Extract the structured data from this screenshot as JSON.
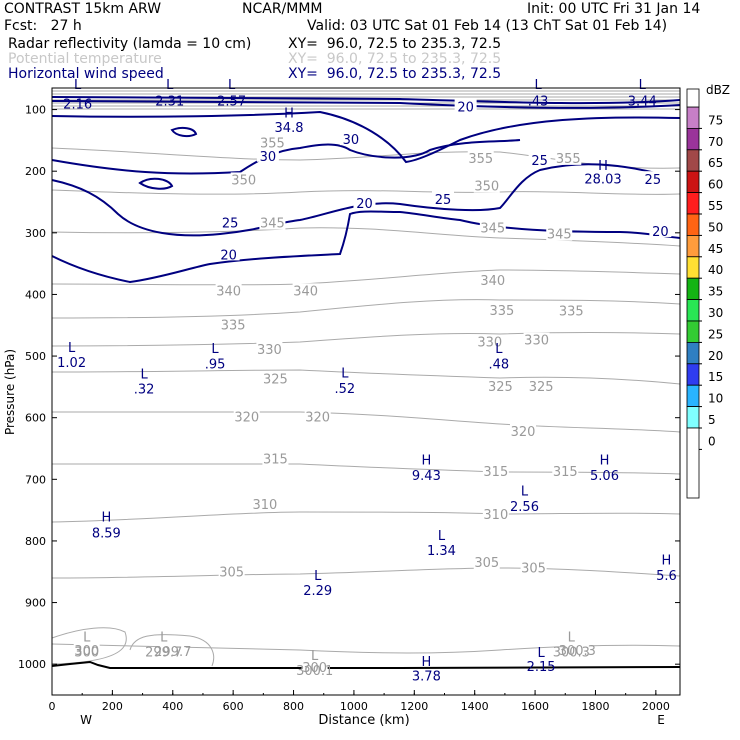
{
  "header": {
    "model": "CONTRAST 15km ARW",
    "org": "NCAR/MMM",
    "init": "Init: 00 UTC Fri 31 Jan 14",
    "fcst": "Fcst:   27 h",
    "valid": "Valid: 03 UTC Sat 01 Feb 14 (13 ChT Sat 01 Feb 14)",
    "fields": [
      {
        "name": "Radar reflectivity (lamda = 10 cm)",
        "xy": "XY=  96.0, 72.5 to 235.3, 72.5",
        "color": "#000000"
      },
      {
        "name": "Potential temperature",
        "xy": "XY=  96.0, 72.5 to 235.3, 72.5",
        "color": "#c8c8c8"
      },
      {
        "name": "Horizontal wind speed",
        "xy": "XY=  96.0, 72.5 to 235.3, 72.5",
        "color": "#000080"
      }
    ]
  },
  "colorbar": {
    "unit": "dBZ",
    "levels": [
      "0",
      "5",
      "10",
      "15",
      "20",
      "25",
      "30",
      "35",
      "40",
      "45",
      "50",
      "55",
      "60",
      "65",
      "70",
      "75"
    ],
    "colors": [
      "#ffffff",
      "#80ffff",
      "#29b4ff",
      "#2f3cf0",
      "#2f7fc2",
      "#33cc33",
      "#29e654",
      "#14b414",
      "#ffe033",
      "#ff9c3c",
      "#ff6414",
      "#ff1e1e",
      "#cc1414",
      "#a14848",
      "#9a349a",
      "#c77fc7"
    ]
  },
  "chart_data": {
    "type": "cross-section contour",
    "xlabel": "Distance (km)",
    "ylabel": "Pressure (hPa)",
    "xlim": [
      0,
      2080
    ],
    "ylim": [
      1050,
      65
    ],
    "x_ticks": [
      "0",
      "200",
      "400",
      "600",
      "800",
      "1000",
      "1200",
      "1400",
      "1600",
      "1800",
      "2000"
    ],
    "y_ticks": [
      "100",
      "200",
      "300",
      "400",
      "500",
      "600",
      "700",
      "800",
      "900",
      "1000"
    ],
    "x_end_labels": {
      "left": "W",
      "right": "E"
    },
    "theta_labels": [
      {
        "t": "355",
        "x": 730,
        "p": 155
      },
      {
        "t": "355",
        "x": 1420,
        "p": 180
      },
      {
        "t": "355",
        "x": 1710,
        "p": 180
      },
      {
        "t": "350",
        "x": 635,
        "p": 215
      },
      {
        "t": "350",
        "x": 1440,
        "p": 225
      },
      {
        "t": "345",
        "x": 730,
        "p": 285
      },
      {
        "t": "345",
        "x": 1460,
        "p": 293
      },
      {
        "t": "345",
        "x": 1680,
        "p": 303
      },
      {
        "t": "340",
        "x": 585,
        "p": 395
      },
      {
        "t": "340",
        "x": 840,
        "p": 395
      },
      {
        "t": "340",
        "x": 1460,
        "p": 378
      },
      {
        "t": "335",
        "x": 600,
        "p": 450
      },
      {
        "t": "335",
        "x": 1490,
        "p": 427
      },
      {
        "t": "335",
        "x": 1720,
        "p": 428
      },
      {
        "t": "330",
        "x": 720,
        "p": 490
      },
      {
        "t": "330",
        "x": 1450,
        "p": 478
      },
      {
        "t": "330",
        "x": 1605,
        "p": 475
      },
      {
        "t": "325",
        "x": 740,
        "p": 538
      },
      {
        "t": "325",
        "x": 1485,
        "p": 550
      },
      {
        "t": "325",
        "x": 1620,
        "p": 550
      },
      {
        "t": "320",
        "x": 645,
        "p": 600
      },
      {
        "t": "320",
        "x": 880,
        "p": 600
      },
      {
        "t": "320",
        "x": 1560,
        "p": 623
      },
      {
        "t": "315",
        "x": 740,
        "p": 668
      },
      {
        "t": "315",
        "x": 1470,
        "p": 688
      },
      {
        "t": "315",
        "x": 1700,
        "p": 688
      },
      {
        "t": "310",
        "x": 705,
        "p": 742
      },
      {
        "t": "310",
        "x": 1470,
        "p": 758
      },
      {
        "t": "305",
        "x": 595,
        "p": 851
      },
      {
        "t": "305",
        "x": 1440,
        "p": 836
      },
      {
        "t": "305",
        "x": 1595,
        "p": 845
      },
      {
        "t": "300",
        "x": 115,
        "p": 979
      },
      {
        "t": "300",
        "x": 870,
        "p": 1006
      },
      {
        "t": "300.3",
        "x": 1740,
        "p": 979
      },
      {
        "t": "299.7",
        "x": 400,
        "p": 980
      }
    ],
    "wind_labels": [
      {
        "t": "30",
        "x": 715,
        "p": 175
      },
      {
        "t": "30",
        "x": 990,
        "p": 148
      },
      {
        "t": "25",
        "x": 590,
        "p": 283
      },
      {
        "t": "25",
        "x": 1295,
        "p": 245
      },
      {
        "t": "25",
        "x": 1615,
        "p": 182
      },
      {
        "t": "25",
        "x": 1990,
        "p": 213
      },
      {
        "t": "20",
        "x": 585,
        "p": 335
      },
      {
        "t": "20",
        "x": 1035,
        "p": 252
      },
      {
        "t": "20",
        "x": 1370,
        "p": 95
      },
      {
        "t": "20",
        "x": 2015,
        "p": 297
      }
    ],
    "extrema": [
      {
        "k": "H",
        "v": "34.8",
        "x": 785,
        "p": 105,
        "vp": 128
      },
      {
        "k": "H",
        "v": "28.03",
        "x": 1825,
        "p": 190,
        "vp": 212
      },
      {
        "k": "L",
        "v": "2.16",
        "x": 85,
        "p": -1,
        "vp": 90
      },
      {
        "k": "L",
        "v": "2.31",
        "x": 390,
        "p": -1,
        "vp": 85
      },
      {
        "k": "L",
        "v": "2.57",
        "x": 595,
        "p": -1,
        "vp": 85
      },
      {
        "k": "L",
        "v": ".43",
        "x": 1610,
        "p": -1,
        "vp": 85
      },
      {
        "k": "L",
        "v": "3.44",
        "x": 1955,
        "p": -1,
        "vp": 85
      },
      {
        "k": "L",
        "v": "1.02",
        "x": 65,
        "p": 485,
        "vp": 510
      },
      {
        "k": "L",
        "v": ".32",
        "x": 305,
        "p": 528,
        "vp": 553
      },
      {
        "k": "L",
        "v": ".95",
        "x": 540,
        "p": 487,
        "vp": 512
      },
      {
        "k": "L",
        "v": ".52",
        "x": 970,
        "p": 527,
        "vp": 552
      },
      {
        "k": "L",
        "v": ".48",
        "x": 1480,
        "p": 487,
        "vp": 512
      },
      {
        "k": "H",
        "v": "9.43",
        "x": 1240,
        "p": 668,
        "vp": 693
      },
      {
        "k": "H",
        "v": "5.06",
        "x": 1830,
        "p": 668,
        "vp": 693
      },
      {
        "k": "L",
        "v": "2.56",
        "x": 1565,
        "p": 718,
        "vp": 743
      },
      {
        "k": "H",
        "v": "8.59",
        "x": 180,
        "p": 760,
        "vp": 786
      },
      {
        "k": "L",
        "v": "1.34",
        "x": 1290,
        "p": 790,
        "vp": 815
      },
      {
        "k": "H",
        "v": "5.6",
        "x": 2035,
        "p": 830,
        "vp": 855
      },
      {
        "k": "L",
        "v": "2.29",
        "x": 880,
        "p": 855,
        "vp": 880
      },
      {
        "k": "L",
        "v": "300",
        "x": 115,
        "p": 955,
        "vp": -1
      },
      {
        "k": "L",
        "v": "299.7",
        "x": 370,
        "p": 955,
        "vp": -1
      },
      {
        "k": "L",
        "v": "300.1",
        "x": 870,
        "p": 985,
        "vp": -1
      },
      {
        "k": "H",
        "v": "3.78",
        "x": 1240,
        "p": 995,
        "vp": 1018
      },
      {
        "k": "L",
        "v": "2.15",
        "x": 1620,
        "p": 980,
        "vp": 1003
      },
      {
        "k": "L",
        "v": "300.3",
        "x": 1720,
        "p": 955,
        "vp": -1
      }
    ]
  }
}
